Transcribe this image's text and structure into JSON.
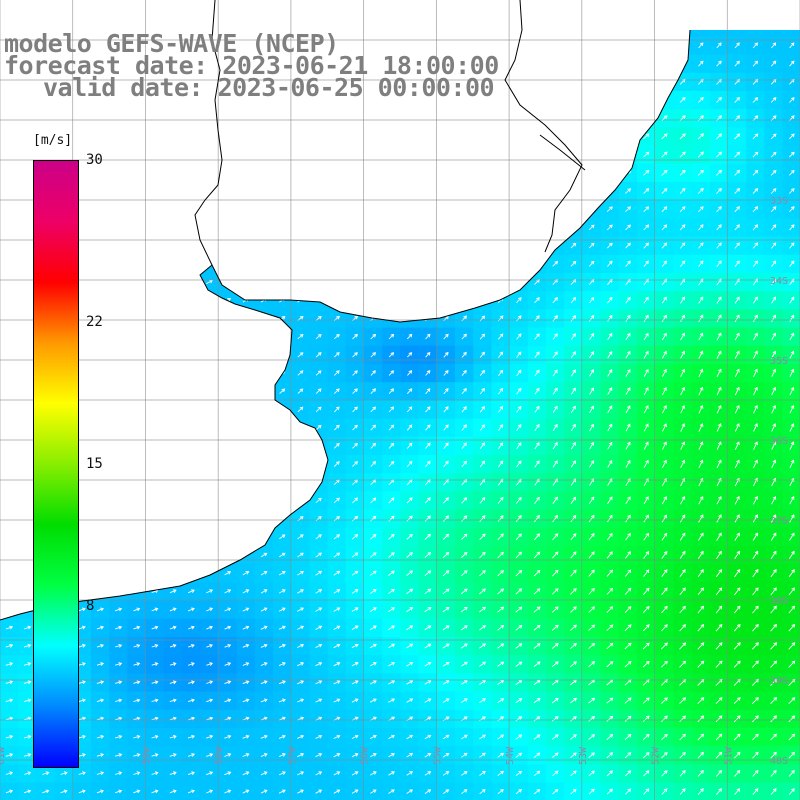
{
  "title": {
    "line1": "modelo GEFS-WAVE (NCEP)",
    "line2": "forecast date: 2023-06-21 18:00:00",
    "line3": "valid date: 2023-06-25 00:00:00"
  },
  "colorbar": {
    "unit": "[m/s]",
    "ticks": [
      "30",
      "22",
      "15",
      "8"
    ],
    "tick_values": [
      30,
      22,
      15,
      8
    ],
    "min": 0,
    "max": 30,
    "colors": [
      "#0000ff",
      "#0088ff",
      "#00ffff",
      "#00ff44",
      "#00dd00",
      "#88ee00",
      "#ffff00",
      "#ff9900",
      "#ff0000",
      "#ee0066",
      "#cc0088"
    ]
  },
  "map": {
    "projection": "lat-lon",
    "lon_range": [
      -61,
      -50
    ],
    "lat_range": [
      -40.5,
      -30.5
    ],
    "lat_labels": [
      "33S",
      "34S",
      "35S",
      "36S",
      "37S",
      "38S",
      "39S",
      "40S"
    ],
    "lon_labels": [
      "61W",
      "60W",
      "59W",
      "58W",
      "57W",
      "56W",
      "55W",
      "54W",
      "53W",
      "52W",
      "51W"
    ],
    "land_color": "#ffffff",
    "grid_color": "#888888",
    "coast_color": "#000000",
    "arrow_color": "#ffffff",
    "field": "wind speed (m/s) with direction arrows"
  }
}
